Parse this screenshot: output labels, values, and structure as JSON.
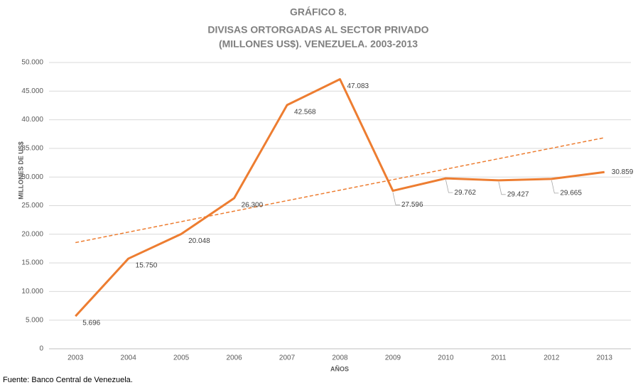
{
  "chart_data": {
    "type": "line",
    "title": [
      "GRÁFICO 8.",
      "DIVISAS ORTORGADAS AL SECTOR PRIVADO",
      "(MILLONES US$). VENEZUELA. 2003-2013"
    ],
    "y_label": "MILLONES DE US$",
    "x_label": "AÑOS",
    "source": "Fuente: Banco Central de Venezuela.",
    "categories": [
      "2003",
      "2004",
      "2005",
      "2006",
      "2007",
      "2008",
      "2009",
      "2010",
      "2011",
      "2012",
      "2013"
    ],
    "values": [
      5696,
      15750,
      20048,
      26300,
      42568,
      47083,
      27596,
      29762,
      29427,
      29665,
      30859
    ],
    "value_labels": [
      "5.696",
      "15.750",
      "20.048",
      "26.300",
      "42.568",
      "47.083",
      "27.596",
      "29.762",
      "29.427",
      "29.665",
      "30.859"
    ],
    "color": "#ed7d31",
    "trendline": {
      "start": 18543,
      "end": 36867,
      "dashed": true
    },
    "ylim": [
      0,
      50000
    ],
    "yticks": [
      0,
      {
        "value": 5000,
        "label": "5.000"
      },
      {
        "value": 10000,
        "label": "10.000"
      },
      {
        "value": 15000,
        "label": "15.000"
      },
      {
        "value": 20000,
        "label": "20.000"
      },
      {
        "value": 25000,
        "label": "25.000"
      },
      {
        "value": 30000,
        "label": "30.000"
      },
      {
        "value": 35000,
        "label": "35.000"
      },
      {
        "value": 40000,
        "label": "40.000"
      },
      {
        "value": 45000,
        "label": "45.000"
      },
      {
        "value": 50000,
        "label": "50.000"
      }
    ],
    "grid": true
  }
}
